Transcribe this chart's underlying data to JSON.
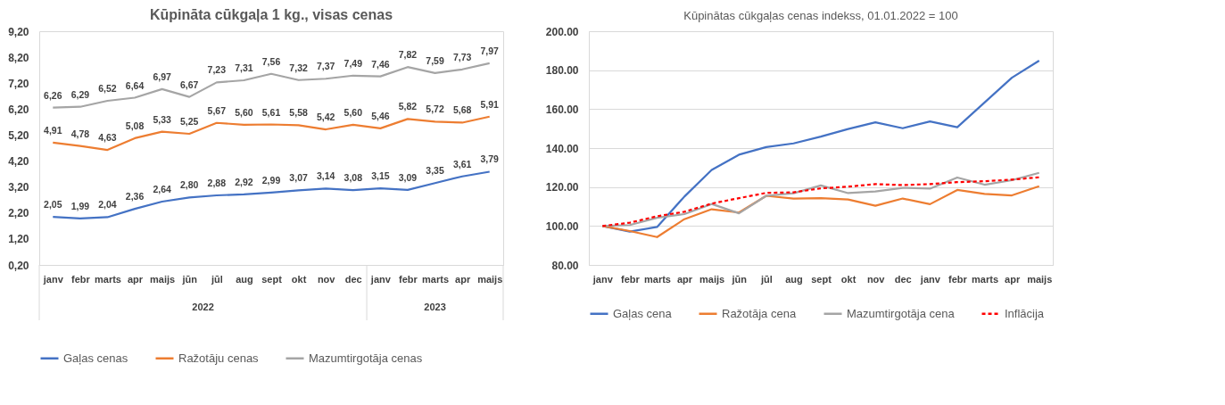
{
  "chart_data": [
    {
      "type": "line",
      "title": "Kūpināta cūkgaļa 1 kg., visas cenas",
      "categories": [
        "janv",
        "febr",
        "marts",
        "apr",
        "maijs",
        "jūn",
        "jūl",
        "aug",
        "sept",
        "okt",
        "nov",
        "dec",
        "janv",
        "febr",
        "marts",
        "apr",
        "maijs"
      ],
      "series": [
        {
          "name": "Gaļas cenas",
          "color": "#4472c4",
          "values": [
            2.05,
            1.99,
            2.04,
            2.36,
            2.64,
            2.8,
            2.88,
            2.92,
            2.99,
            3.07,
            3.14,
            3.08,
            3.15,
            3.09,
            3.35,
            3.61,
            3.79
          ],
          "value_labels": [
            "2,05",
            "1,99",
            "2,04",
            "2,36",
            "2,64",
            "2,80",
            "2,88",
            "2,92",
            "2,99",
            "3,07",
            "3,14",
            "3,08",
            "3,15",
            "3,09",
            "3,35",
            "3,61",
            "3,79"
          ]
        },
        {
          "name": "Ražotāju cenas",
          "color": "#ed7d31",
          "values": [
            4.91,
            4.78,
            4.63,
            5.08,
            5.33,
            5.25,
            5.67,
            5.6,
            5.61,
            5.58,
            5.42,
            5.6,
            5.46,
            5.82,
            5.72,
            5.68,
            5.91
          ],
          "value_labels": [
            "4,91",
            "4,78",
            "4,63",
            "5,08",
            "5,33",
            "5,25",
            "5,67",
            "5,60",
            "5,61",
            "5,58",
            "5,42",
            "5,60",
            "5,46",
            "5,82",
            "5,72",
            "5,68",
            "5,91"
          ]
        },
        {
          "name": "Mazumtirgotāja cenas",
          "color": "#a5a5a5",
          "values": [
            6.26,
            6.29,
            6.52,
            6.64,
            6.97,
            6.67,
            7.23,
            7.31,
            7.56,
            7.32,
            7.37,
            7.49,
            7.46,
            7.82,
            7.59,
            7.73,
            7.97
          ],
          "value_labels": [
            "6,26",
            "6,29",
            "6,52",
            "6,64",
            "6,97",
            "6,67",
            "7,23",
            "7,31",
            "7,56",
            "7,32",
            "7,37",
            "7,49",
            "7,46",
            "7,82",
            "7,59",
            "7,73",
            "7,97"
          ]
        }
      ],
      "ylim": [
        0.2,
        9.2
      ],
      "yticks": [
        {
          "value": 0.2,
          "label": "0,20"
        },
        {
          "value": 1.2,
          "label": "1,20"
        },
        {
          "value": 2.2,
          "label": "2,20"
        },
        {
          "value": 3.2,
          "label": "3,20"
        },
        {
          "value": 4.2,
          "label": "4,20"
        },
        {
          "value": 5.2,
          "label": "5,20"
        },
        {
          "value": 6.2,
          "label": "6,20"
        },
        {
          "value": 7.2,
          "label": "7,20"
        },
        {
          "value": 8.2,
          "label": "8,20"
        },
        {
          "value": 9.2,
          "label": "9,20"
        }
      ],
      "annotations": [
        "2022",
        "2023"
      ],
      "grid": false,
      "legend": "bottom",
      "marker": "none",
      "line_style": "solid"
    },
    {
      "type": "line",
      "title": "Kūpinātas cūkgaļas cenas indekss, 01.01.2022 = 100",
      "categories": [
        "janv",
        "febr",
        "marts",
        "apr",
        "maijs",
        "jūn",
        "jūl",
        "aug",
        "sept",
        "okt",
        "nov",
        "dec",
        "janv",
        "febr",
        "marts",
        "apr",
        "maijs"
      ],
      "series": [
        {
          "name": "Gaļas cena",
          "color": "#4472c4",
          "values": [
            100,
            97.1,
            99.5,
            115.1,
            128.8,
            136.6,
            140.5,
            142.4,
            145.9,
            149.8,
            153.2,
            150.2,
            153.7,
            150.7,
            163.4,
            176.1,
            184.9
          ]
        },
        {
          "name": "Ražotāja cena",
          "color": "#ed7d31",
          "values": [
            100,
            97.4,
            94.3,
            103.5,
            108.6,
            106.9,
            115.5,
            114.1,
            114.3,
            113.6,
            110.4,
            114.1,
            111.2,
            118.5,
            116.5,
            115.7,
            120.4
          ]
        },
        {
          "name": "Mazumtirgotāja cena",
          "color": "#a5a5a5",
          "values": [
            100,
            100.5,
            104.2,
            106.1,
            111.3,
            106.5,
            115.5,
            116.8,
            120.8,
            116.9,
            117.7,
            119.6,
            119.2,
            124.9,
            121.2,
            123.5,
            127.3
          ]
        },
        {
          "name": "Inflācija",
          "color": "#ff0000",
          "line_style": "dashed",
          "values": [
            100,
            101.7,
            105,
            107.3,
            111.5,
            114.3,
            117,
            117.3,
            119.3,
            120.2,
            121.5,
            121,
            121.5,
            122.5,
            123,
            123.8,
            125
          ]
        }
      ],
      "ylim": [
        80,
        200
      ],
      "yticks": [
        {
          "value": 80,
          "label": "80.00"
        },
        {
          "value": 100,
          "label": "100.00"
        },
        {
          "value": 120,
          "label": "120.00"
        },
        {
          "value": 140,
          "label": "140.00"
        },
        {
          "value": 160,
          "label": "160.00"
        },
        {
          "value": 180,
          "label": "180.00"
        },
        {
          "value": 200,
          "label": "200.00"
        }
      ],
      "grid": "y",
      "legend": "bottom",
      "marker": "none",
      "line_style": "solid"
    }
  ]
}
